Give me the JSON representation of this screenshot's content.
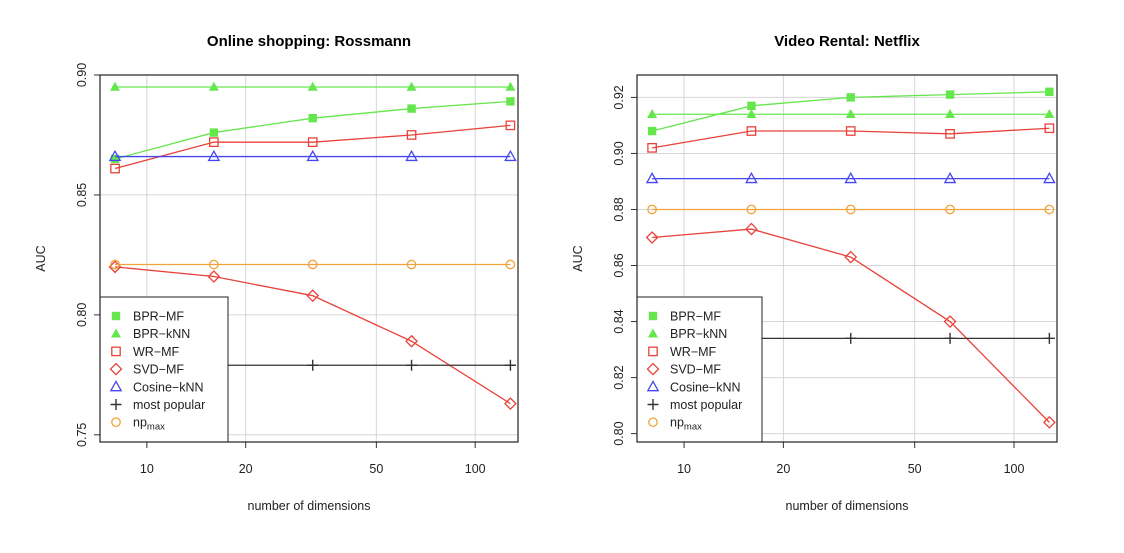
{
  "chart_data": [
    {
      "type": "line",
      "title": "Online shopping: Rossmann",
      "xlabel": "number of dimensions",
      "ylabel": "AUC",
      "x_scale": "log",
      "xlim": [
        7.2,
        135
      ],
      "ylim": [
        0.747,
        0.9
      ],
      "x_ticks": [
        10,
        20,
        50,
        100
      ],
      "y_ticks": [
        0.75,
        0.8,
        0.85,
        0.9
      ],
      "y_tick_labels": [
        "0.75",
        "0.80",
        "0.85",
        "0.90"
      ],
      "grid": true,
      "legend_position": "bottom-left",
      "x": [
        8,
        16,
        32,
        64,
        128
      ],
      "series": [
        {
          "name": "BPR−MF",
          "marker": "square",
          "color": "#66e64d",
          "line": true,
          "values": [
            0.865,
            0.876,
            0.882,
            0.886,
            0.889
          ]
        },
        {
          "name": "BPR−kNN",
          "marker": "triangle",
          "color": "#66e64d",
          "line": true,
          "values": [
            0.895,
            0.895,
            0.895,
            0.895,
            0.895
          ]
        },
        {
          "name": "WR−MF",
          "marker": "open-square",
          "color": "#e8433a",
          "line": true,
          "values": [
            0.861,
            0.872,
            0.872,
            0.875,
            0.879
          ]
        },
        {
          "name": "SVD−MF",
          "marker": "open-diamond",
          "color": "#e8433a",
          "line": true,
          "values": [
            0.82,
            0.816,
            0.808,
            0.789,
            0.763
          ]
        },
        {
          "name": "Cosine−kNN",
          "marker": "open-triangle",
          "color": "#4646ee",
          "line": true,
          "values": [
            0.866,
            0.866,
            0.866,
            0.866,
            0.866
          ]
        },
        {
          "name": "most popular",
          "marker": "plus",
          "color": "#333333",
          "line": true,
          "values": [
            0.779,
            0.779,
            0.779,
            0.779,
            0.779
          ]
        },
        {
          "name": "np",
          "name_sub": "max",
          "marker": "open-circle",
          "color": "#f0a33a",
          "line": true,
          "values": [
            0.821,
            0.821,
            0.821,
            0.821,
            0.821
          ]
        }
      ]
    },
    {
      "type": "line",
      "title": "Video Rental: Netflix",
      "xlabel": "number of dimensions",
      "ylabel": "AUC",
      "x_scale": "log",
      "xlim": [
        7.2,
        135
      ],
      "ylim": [
        0.797,
        0.928
      ],
      "x_ticks": [
        10,
        20,
        50,
        100
      ],
      "y_ticks": [
        0.8,
        0.82,
        0.84,
        0.86,
        0.88,
        0.9,
        0.92
      ],
      "y_tick_labels": [
        "0.80",
        "0.82",
        "0.84",
        "0.86",
        "0.88",
        "0.90",
        "0.92"
      ],
      "grid": true,
      "legend_position": "bottom-left",
      "x": [
        8,
        16,
        32,
        64,
        128
      ],
      "series": [
        {
          "name": "BPR−MF",
          "marker": "square",
          "color": "#66e64d",
          "line": true,
          "values": [
            0.908,
            0.917,
            0.92,
            0.921,
            0.922
          ]
        },
        {
          "name": "BPR−kNN",
          "marker": "triangle",
          "color": "#66e64d",
          "line": true,
          "values": [
            0.914,
            0.914,
            0.914,
            0.914,
            0.914
          ]
        },
        {
          "name": "WR−MF",
          "marker": "open-square",
          "color": "#e8433a",
          "line": true,
          "values": [
            0.902,
            0.908,
            0.908,
            0.907,
            0.909
          ]
        },
        {
          "name": "SVD−MF",
          "marker": "open-diamond",
          "color": "#e8433a",
          "line": true,
          "values": [
            0.87,
            0.873,
            0.863,
            0.84,
            0.804
          ]
        },
        {
          "name": "Cosine−kNN",
          "marker": "open-triangle",
          "color": "#4646ee",
          "line": true,
          "values": [
            0.891,
            0.891,
            0.891,
            0.891,
            0.891
          ]
        },
        {
          "name": "most popular",
          "marker": "plus",
          "color": "#333333",
          "line": true,
          "values": [
            0.834,
            0.834,
            0.834,
            0.834,
            0.834
          ]
        },
        {
          "name": "np",
          "name_sub": "max",
          "marker": "open-circle",
          "color": "#f0a33a",
          "line": true,
          "values": [
            0.88,
            0.88,
            0.88,
            0.88,
            0.88
          ]
        }
      ]
    }
  ]
}
